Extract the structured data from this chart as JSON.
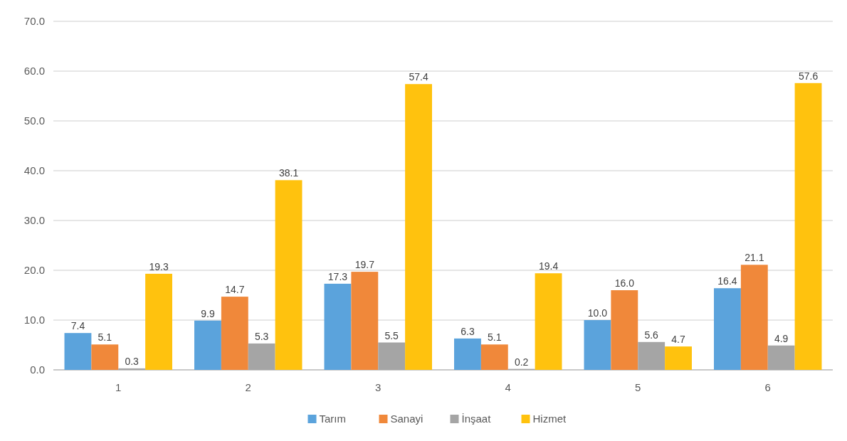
{
  "chart_data": {
    "type": "bar",
    "categories": [
      "1",
      "2",
      "3",
      "4",
      "5",
      "6"
    ],
    "series": [
      {
        "name": "Tarım",
        "color": "#5ba3dc",
        "values": [
          7.4,
          9.9,
          17.3,
          6.3,
          10.0,
          16.4
        ],
        "value_labels": [
          "7.4",
          "9.9",
          "17.3",
          "6.3",
          "10.0",
          "16.4"
        ]
      },
      {
        "name": "Sanayi",
        "color": "#f0883a",
        "values": [
          5.1,
          14.7,
          19.7,
          5.1,
          16.0,
          21.1
        ],
        "value_labels": [
          "5.1",
          "14.7",
          "19.7",
          "5.1",
          "16.0",
          "21.1"
        ]
      },
      {
        "name": "İnşaat",
        "color": "#a5a5a5",
        "values": [
          0.3,
          5.3,
          5.5,
          0.2,
          5.6,
          4.9
        ],
        "value_labels": [
          "0.3",
          "5.3",
          "5.5",
          "0.2",
          "5.6",
          "4.9"
        ]
      },
      {
        "name": "Hizmet",
        "color": "#ffc20e",
        "values": [
          19.3,
          38.1,
          57.4,
          19.4,
          4.7,
          57.6
        ],
        "value_labels": [
          "19.3",
          "38.1",
          "57.4",
          "19.4",
          "4.7",
          "57.6"
        ]
      }
    ],
    "ylim": [
      0,
      70
    ],
    "yticks": [
      {
        "value": 0,
        "label": "0.0"
      },
      {
        "value": 10,
        "label": "10.0"
      },
      {
        "value": 20,
        "label": "20.0"
      },
      {
        "value": 30,
        "label": "30.0"
      },
      {
        "value": 40,
        "label": "40.0"
      },
      {
        "value": 50,
        "label": "50.0"
      },
      {
        "value": 60,
        "label": "60.0"
      },
      {
        "value": 70,
        "label": "70.0"
      }
    ],
    "grid": "y",
    "legend": "bottom"
  }
}
